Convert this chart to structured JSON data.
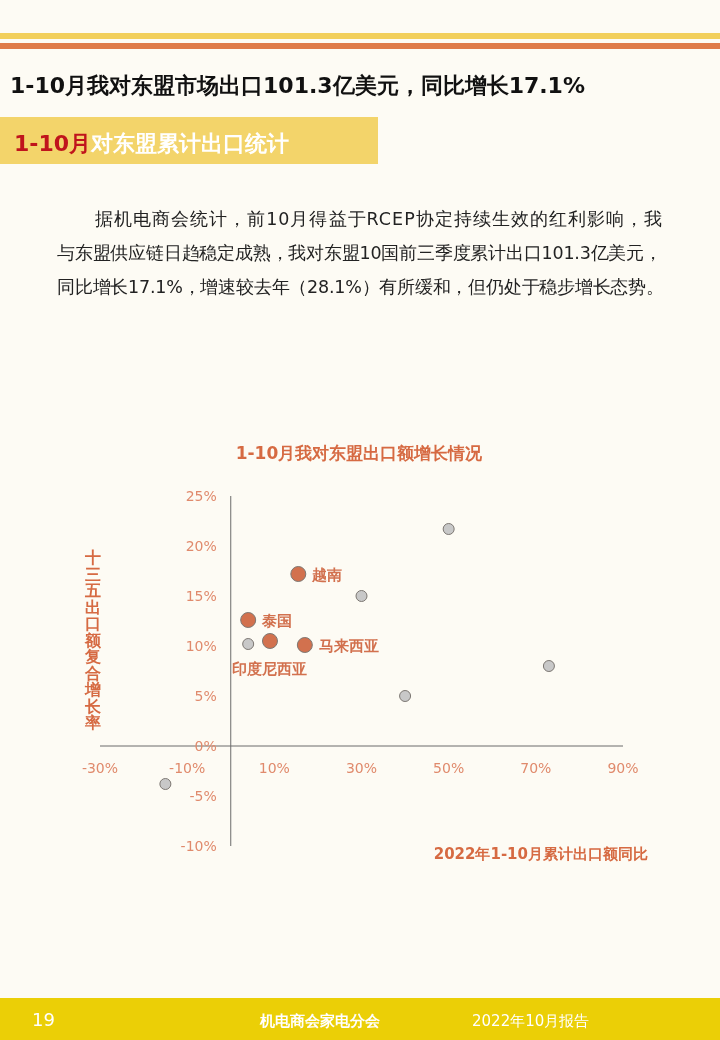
{
  "chart_data": {
    "type": "scatter",
    "title": "1-10月我对东盟出口额增长情况",
    "xlabel": "2022年1-10月累计出口额同比",
    "ylabel": "十三五出口额复合增长率",
    "xlim": [
      -30,
      90
    ],
    "xticks": [
      {
        "value": -30,
        "label": "-30%"
      },
      {
        "value": -10,
        "label": "-10%"
      },
      {
        "value": 10,
        "label": "10%"
      },
      {
        "value": 30,
        "label": "30%"
      },
      {
        "value": 50,
        "label": "50%"
      },
      {
        "value": 70,
        "label": "70%"
      },
      {
        "value": 90,
        "label": "90%"
      }
    ],
    "ylim": [
      -10,
      25
    ],
    "yticks": [
      {
        "value": -10,
        "label": "-10%"
      },
      {
        "value": -5,
        "label": "-5%"
      },
      {
        "value": 0,
        "label": "0%"
      },
      {
        "value": 5,
        "label": "5%"
      },
      {
        "value": 10,
        "label": "10%"
      },
      {
        "value": 15,
        "label": "15%"
      },
      {
        "value": 20,
        "label": "20%"
      },
      {
        "value": 25,
        "label": "25%"
      }
    ],
    "marker": "circle",
    "series": [
      {
        "color": "#c8c8c8",
        "x": [
          50,
          30,
          73,
          40,
          -15,
          4
        ],
        "values": [
          21.7,
          15,
          8,
          5,
          -3.8,
          10.2
        ]
      },
      {
        "color": "#d2714e",
        "x": [
          15.5,
          4,
          9,
          17
        ],
        "values": [
          17.2,
          12.6,
          10.5,
          10.1
        ]
      }
    ],
    "annotations": [
      "1-10月我对东盟市场出口101.3亿美元，同比增长17.1%",
      "1-10月",
      "对东盟累计出口统计",
      "据机电商会统计，前10月得益于RCEP协定持续生效的红利影响，我",
      "与东盟供应链日趋稳定成熟，我对东盟10国前三季度累计出口101.3亿美元，",
      "同比增长17.1%，增速较去年（28.1%）有所缓和，但仍处于稳步增长态势。",
      "19",
      "机电商会家电分会",
      "2022年10月报告",
      {
        "text": "越南",
        "x": 15.5,
        "y": 17.2
      },
      {
        "text": "泰国",
        "x": 4,
        "y": 12.6
      },
      {
        "text": "印度尼西亚",
        "x": 9,
        "y": 10.5
      },
      {
        "text": "马来西亚",
        "x": 17,
        "y": 10.1
      }
    ]
  }
}
